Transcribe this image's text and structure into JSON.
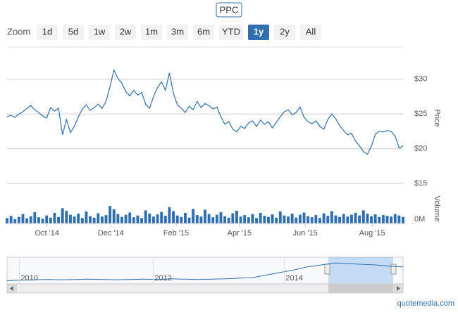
{
  "header": {
    "title": "PPC",
    "zoom_label": "Zoom",
    "zoom_buttons": [
      "1d",
      "5d",
      "1w",
      "2w",
      "1m",
      "3m",
      "6m",
      "YTD",
      "1y",
      "2y",
      "All"
    ],
    "active_zoom": "1y"
  },
  "chart_data": [
    {
      "type": "line",
      "y_label": "Price",
      "color": "#2f6fb0",
      "grid": true,
      "values": [
        24.6,
        24.8,
        24.5,
        25.0,
        25.3,
        25.8,
        26.2,
        25.6,
        25.2,
        24.7,
        24.4,
        25.9,
        25.4,
        25.8,
        22.0,
        24.2,
        22.3,
        23.2,
        24.6,
        25.7,
        26.3,
        25.5,
        25.9,
        26.4,
        25.8,
        26.8,
        28.9,
        31.3,
        30.1,
        29.4,
        28.2,
        27.6,
        28.4,
        27.7,
        28.1,
        26.4,
        25.8,
        27.5,
        28.8,
        29.6,
        28.4,
        30.9,
        28.0,
        26.3,
        25.8,
        25.2,
        26.1,
        25.6,
        26.8,
        25.9,
        26.5,
        26.2,
        25.7,
        26.0,
        24.6,
        23.5,
        23.9,
        22.8,
        22.4,
        23.2,
        22.9,
        23.7,
        24.0,
        23.2,
        24.1,
        23.5,
        23.9,
        23.0,
        23.8,
        24.6,
        25.3,
        25.6,
        24.9,
        25.2,
        26.0,
        24.5,
        23.9,
        23.6,
        24.0,
        23.2,
        22.8,
        24.2,
        25.0,
        24.3,
        23.3,
        22.6,
        22.0,
        22.2,
        21.1,
        20.4,
        19.6,
        19.2,
        20.3,
        22.1,
        22.5,
        22.4,
        22.6,
        22.5,
        21.8,
        20.1,
        20.4
      ],
      "xlim": [
        0,
        100
      ],
      "xticks": [
        {
          "value": 10.1,
          "label": "Oct '14"
        },
        {
          "value": 26.2,
          "label": "Dec '14"
        },
        {
          "value": 42.7,
          "label": "Feb '15"
        },
        {
          "value": 58.7,
          "label": "Apr '15"
        },
        {
          "value": 75.3,
          "label": "Jun '15"
        },
        {
          "value": 92.2,
          "label": "Aug '15"
        }
      ],
      "ylim": [
        14,
        34
      ],
      "yticks": [
        {
          "value": 15,
          "label": "$15"
        },
        {
          "value": 20,
          "label": "$20"
        },
        {
          "value": 25,
          "label": "$25"
        },
        {
          "value": 30,
          "label": "$30"
        }
      ]
    },
    {
      "type": "bar",
      "y_label": "Volume",
      "color": "#2f6fb0",
      "values": [
        1.5,
        2.1,
        1.2,
        1.8,
        2.6,
        1.4,
        2.0,
        3.1,
        1.7,
        1.3,
        2.2,
        1.6,
        2.9,
        1.8,
        4.2,
        3.5,
        2.4,
        1.9,
        2.7,
        1.5,
        3.3,
        2.0,
        1.6,
        2.8,
        1.9,
        2.3,
        4.8,
        3.9,
        2.6,
        1.8,
        2.4,
        3.0,
        1.7,
        2.2,
        1.5,
        3.6,
        2.7,
        1.9,
        2.5,
        3.2,
        2.1,
        4.5,
        3.4,
        2.2,
        1.8,
        2.9,
        1.6,
        4.0,
        2.3,
        1.9,
        3.8,
        2.6,
        1.7,
        2.4,
        3.1,
        2.0,
        1.6,
        2.8,
        3.5,
        1.9,
        2.3,
        1.7,
        2.6,
        1.5,
        2.9,
        2.1,
        1.8,
        2.5,
        1.6,
        3.3,
        2.2,
        1.9,
        2.7,
        1.6,
        2.4,
        3.0,
        2.0,
        1.7,
        2.3,
        1.5,
        2.8,
        2.1,
        3.4,
        2.2,
        1.8,
        2.6,
        1.9,
        2.4,
        2.9,
        2.2,
        3.6,
        2.7,
        2.0,
        2.5,
        1.8,
        2.3,
        2.1,
        1.9,
        2.6,
        2.2,
        1.8
      ],
      "ylim": [
        0,
        6
      ],
      "yticks": [
        {
          "value": 0,
          "label": "0M"
        }
      ]
    },
    {
      "type": "area",
      "color": "#2f6fb0",
      "values": [
        5,
        6,
        6.5,
        7,
        6.5,
        7,
        7.5,
        7,
        6.5,
        7,
        7.5,
        7,
        8,
        7.5,
        7,
        7.5,
        8,
        9,
        10,
        14,
        18,
        22,
        27,
        30,
        33,
        32,
        31,
        30,
        28,
        27
      ],
      "xlim": [
        0,
        29
      ],
      "xticks": [
        {
          "value": 0.9,
          "label": "2010"
        },
        {
          "value": 10.7,
          "label": "2012"
        },
        {
          "value": 20.3,
          "label": "2014"
        }
      ],
      "ylim": [
        0,
        40
      ]
    }
  ],
  "footer": "quotemedia.com"
}
